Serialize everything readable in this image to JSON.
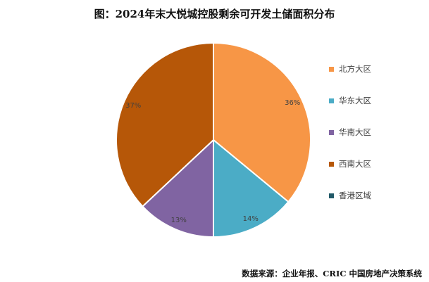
{
  "chart_data": {
    "type": "pie",
    "title": "图：2024年末大悦城控股剩余可开发土储面积分布",
    "categories": [
      "北方大区",
      "华东大区",
      "华南大区",
      "西南大区",
      "香港区域"
    ],
    "values": [
      36,
      14,
      13,
      37,
      0
    ],
    "value_labels": [
      "36%",
      "14%",
      "13%",
      "37%",
      ""
    ],
    "colors": [
      "#F79646",
      "#4BACC6",
      "#8064A2",
      "#B65708",
      "#215968"
    ],
    "legend_position": "right"
  },
  "source": "数据来源：企业年报、CRIC 中国房地产决策系统"
}
